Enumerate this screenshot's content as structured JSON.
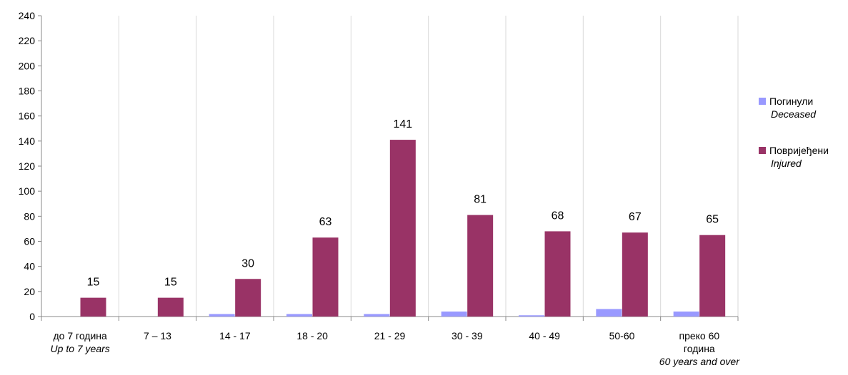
{
  "chart_data": {
    "type": "bar",
    "categories": [
      {
        "label": "до 7 година",
        "sublabel": "Up to 7 years"
      },
      {
        "label": "7 – 13",
        "sublabel": ""
      },
      {
        "label": "14 - 17",
        "sublabel": ""
      },
      {
        "label": "18 - 20",
        "sublabel": ""
      },
      {
        "label": "21 - 29",
        "sublabel": ""
      },
      {
        "label": "30 - 39",
        "sublabel": ""
      },
      {
        "label": "40 - 49",
        "sublabel": ""
      },
      {
        "label": "50-60",
        "sublabel": ""
      },
      {
        "label": "преко 60 година",
        "sublabel": "60 years and over"
      }
    ],
    "series": [
      {
        "name": "Погинули",
        "name_en": "Deceased",
        "color": "#9999ff",
        "values": [
          0,
          0,
          2,
          2,
          2,
          4,
          1,
          6,
          4
        ],
        "show_labels": false
      },
      {
        "name": "Повријеђени",
        "name_en": "Injured",
        "color": "#993366",
        "values": [
          15,
          15,
          30,
          63,
          141,
          81,
          68,
          67,
          65
        ],
        "show_labels": true
      }
    ],
    "ylim": [
      0,
      240
    ],
    "yticks": [
      0,
      20,
      40,
      60,
      80,
      100,
      120,
      140,
      160,
      180,
      200,
      220,
      240
    ],
    "grid": "vertical-category-lines",
    "legend": "right"
  }
}
